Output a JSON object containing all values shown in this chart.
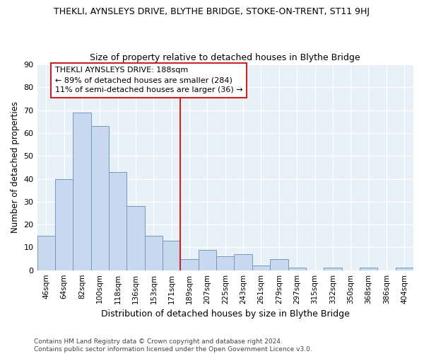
{
  "title": "THEKLI, AYNSLEYS DRIVE, BLYTHE BRIDGE, STOKE-ON-TRENT, ST11 9HJ",
  "subtitle": "Size of property relative to detached houses in Blythe Bridge",
  "xlabel": "Distribution of detached houses by size in Blythe Bridge",
  "ylabel": "Number of detached properties",
  "footer_line1": "Contains HM Land Registry data © Crown copyright and database right 2024.",
  "footer_line2": "Contains public sector information licensed under the Open Government Licence v3.0.",
  "categories": [
    "46sqm",
    "64sqm",
    "82sqm",
    "100sqm",
    "118sqm",
    "136sqm",
    "153sqm",
    "171sqm",
    "189sqm",
    "207sqm",
    "225sqm",
    "243sqm",
    "261sqm",
    "279sqm",
    "297sqm",
    "315sqm",
    "332sqm",
    "350sqm",
    "368sqm",
    "386sqm",
    "404sqm"
  ],
  "values": [
    15,
    40,
    69,
    63,
    43,
    28,
    15,
    13,
    5,
    9,
    6,
    7,
    2,
    5,
    1,
    0,
    1,
    0,
    1,
    0,
    1
  ],
  "bar_color": "#c8d8ee",
  "bar_edge_color": "#7799bb",
  "grid_color": "#c8d8ee",
  "bg_color": "#e8f0f8",
  "vline_color": "#cc2222",
  "annotation_line1": "THEKLI AYNSLEYS DRIVE: 188sqm",
  "annotation_line2": "← 89% of detached houses are smaller (284)",
  "annotation_line3": "11% of semi-detached houses are larger (36) →",
  "annotation_box_color": "#cc2222",
  "ylim": [
    0,
    90
  ],
  "yticks": [
    0,
    10,
    20,
    30,
    40,
    50,
    60,
    70,
    80,
    90
  ]
}
